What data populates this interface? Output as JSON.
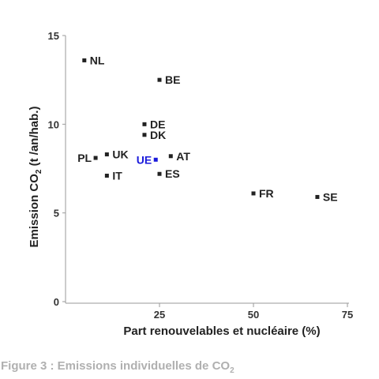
{
  "chart_data": {
    "type": "scatter",
    "title": "",
    "xlabel": "Part renouvelables et nucléaire (%)",
    "ylabel": {
      "main": "Emission CO",
      "sub": "2",
      "tail": " (t /an/hab.)"
    },
    "xlim": [
      0,
      75
    ],
    "ylim": [
      0,
      15
    ],
    "xticks": [
      "25",
      "50",
      "75"
    ],
    "yticks": [
      "0",
      "5",
      "10",
      "15"
    ],
    "highlight_color": "#1a1adb",
    "point_color": "#222222",
    "points": [
      {
        "label": "NL",
        "x": 5,
        "y": 13.6
      },
      {
        "label": "BE",
        "x": 25,
        "y": 12.5
      },
      {
        "label": "DE",
        "x": 21,
        "y": 10.0
      },
      {
        "label": "DK",
        "x": 21,
        "y": 9.4
      },
      {
        "label": "PL",
        "x": 8,
        "y": 8.1
      },
      {
        "label": "UK",
        "x": 11,
        "y": 8.3
      },
      {
        "label": "UE",
        "x": 24,
        "y": 8.0,
        "highlight": true
      },
      {
        "label": "AT",
        "x": 28,
        "y": 8.2
      },
      {
        "label": "IT",
        "x": 11,
        "y": 7.1
      },
      {
        "label": "ES",
        "x": 25,
        "y": 7.2
      },
      {
        "label": "FR",
        "x": 50,
        "y": 6.1
      },
      {
        "label": "SE",
        "x": 67,
        "y": 5.9
      }
    ]
  },
  "caption": {
    "main": "Figure 3 : Emissions individuelles de CO",
    "sub": "2"
  }
}
